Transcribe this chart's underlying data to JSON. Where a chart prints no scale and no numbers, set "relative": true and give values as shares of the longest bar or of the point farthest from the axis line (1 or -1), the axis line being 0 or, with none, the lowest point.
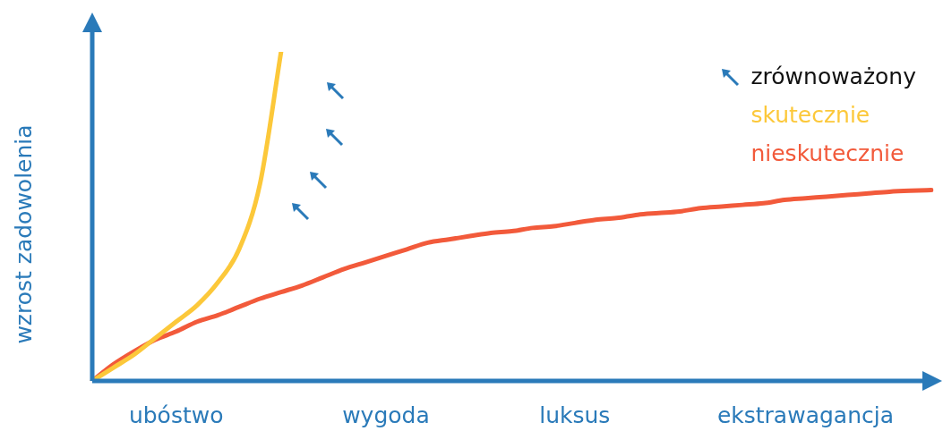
{
  "chart_data": {
    "type": "line",
    "relative": true,
    "ylabel": "wzrost zadowolenia",
    "tick_labels": "x",
    "legend": "top right",
    "marker": "none",
    "line_style": "solid",
    "categories": [
      null,
      null,
      null,
      null,
      "ubóstwo",
      null,
      null,
      null,
      null,
      null,
      null,
      null,
      null,
      null,
      "wygoda",
      null,
      null,
      null,
      null,
      null,
      null,
      null,
      null,
      "luksus",
      null,
      null,
      null,
      null,
      null,
      null,
      null,
      null,
      null,
      null,
      "ekstrawagancja",
      null,
      null,
      null,
      null,
      null,
      null
    ],
    "annotations": [
      "zrównoważony"
    ],
    "series": [
      {
        "name": "skutecznie",
        "color": "#fcc83a",
        "values": [
          0,
          0.04,
          0.08,
          0.13,
          0.18,
          0.23,
          0.3,
          0.4,
          0.6,
          1.0,
          null,
          null,
          null,
          null,
          null,
          null,
          null,
          null,
          null,
          null,
          null,
          null,
          null,
          null,
          null,
          null,
          null,
          null,
          null,
          null,
          null,
          null,
          null,
          null,
          null,
          null,
          null,
          null,
          null,
          null,
          null
        ]
      },
      {
        "name": "nieskutecznie",
        "color": "#f25a3b",
        "values": [
          0,
          0.05,
          0.09,
          0.125,
          0.15,
          0.18,
          0.2,
          0.225,
          0.25,
          0.27,
          0.29,
          0.315,
          0.34,
          0.36,
          0.38,
          0.4,
          0.42,
          0.43,
          0.44,
          0.45,
          0.455,
          0.465,
          0.47,
          0.48,
          0.49,
          0.495,
          0.505,
          0.51,
          0.515,
          0.525,
          0.53,
          0.535,
          0.54,
          0.55,
          0.555,
          0.56,
          0.565,
          0.57,
          0.575,
          0.578,
          0.58
        ]
      }
    ]
  }
}
